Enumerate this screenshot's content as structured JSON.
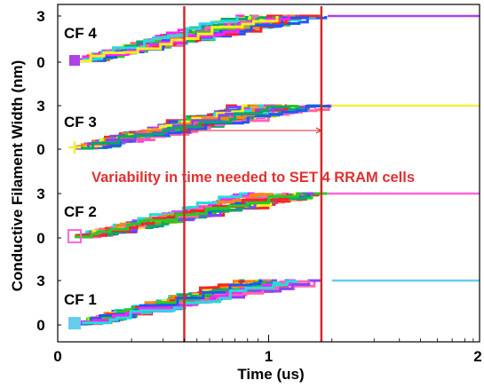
{
  "chart_data": {
    "type": "line",
    "xlabel": "Time (us)",
    "ylabel": "Conductive Filament Width (nm)",
    "xlim": [
      0,
      2
    ],
    "x_ticks": [
      "0",
      "1",
      "2"
    ],
    "panels": [
      {
        "label": "CF 4",
        "y_ticks": [
          "0",
          "3"
        ],
        "color": "#b040e8",
        "marker": "square",
        "final_value": 3,
        "start_time": 0.08,
        "end_time": 1.28
      },
      {
        "label": "CF 3",
        "y_ticks": [
          "0",
          "3"
        ],
        "color": "#f0f040",
        "marker": "plus",
        "final_value": 3,
        "start_time": 0.08,
        "end_time": 1.3
      },
      {
        "label": "CF 2",
        "y_ticks": [
          "0",
          "3"
        ],
        "color": "#ff66dd",
        "marker": "open-square",
        "final_value": 3,
        "start_time": 0.08,
        "end_time": 1.28
      },
      {
        "label": "CF 1",
        "y_ticks": [
          "0",
          "3"
        ],
        "color": "#66ccee",
        "marker": "filled-square",
        "final_value": 3,
        "start_time": 0.08,
        "end_time": 1.3
      }
    ],
    "vertical_markers": [
      0.6,
      1.25
    ],
    "annotation": "Variability in time needed to SET 4 RRAM cells",
    "annotation_color": "#e03030",
    "marker_line_color": "#d42a2a",
    "series_palette": [
      "#ff2222",
      "#22cc22",
      "#2255ff",
      "#ff22ff",
      "#22dddd",
      "#ffee22",
      "#ff8800",
      "#8844ff",
      "#00aa66",
      "#ff66aa"
    ]
  }
}
